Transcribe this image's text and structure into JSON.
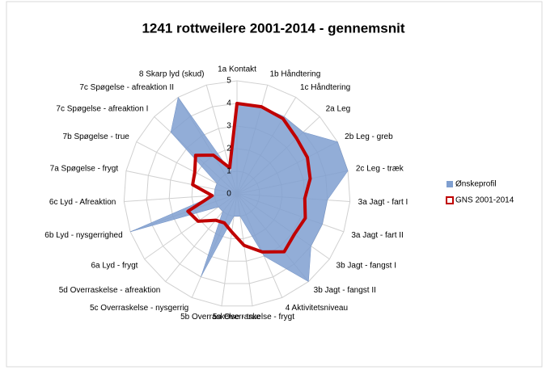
{
  "chart_data": {
    "type": "radar",
    "title": "1241 rottweilere 2001-2014 - gennemsnit",
    "categories": [
      "1a Kontakt",
      "1b Håndtering",
      "1c Håndtering",
      "2a Leg",
      "2b Leg - greb",
      "2c Leg - træk",
      "3a Jagt - fart I",
      "3a Jagt - fart II",
      "3b Jagt - fangst I",
      "3b Jagt - fangst II",
      "4 Aktivitetsniveau",
      "5a Overraskelse - frygt",
      "5b Overraskelse - true",
      "5c Overraskelse - nysgerrig",
      "5d Overraskelse - afreaktion",
      "6a Lyd - frygt",
      "6b Lyd - nysgerrighed",
      "6c Lyd - Afreaktion",
      "7a Spøgelse - frygt",
      "7b Spøgelse - true",
      "7c Spøgelse - afreaktion I",
      "7c Spøgelse - afreaktion II",
      "8 Skarp lyd (skud)"
    ],
    "series": [
      {
        "name": "Ønskeprofil",
        "color": "#7f9fd0",
        "style": "area",
        "values": [
          4,
          4,
          4,
          4,
          5,
          5,
          4,
          4,
          4,
          5,
          3,
          1,
          1,
          4,
          1,
          1,
          5,
          1,
          1,
          1,
          4,
          5,
          1
        ]
      },
      {
        "name": "GNS 2001-2014",
        "color": "#c00000",
        "style": "line",
        "values": [
          4,
          4,
          3.9,
          3.6,
          3.5,
          3.3,
          3,
          3.2,
          3.1,
          3.3,
          2.8,
          2.3,
          1.7,
          1.4,
          1.5,
          2.1,
          2.3,
          1.1,
          2,
          2.1,
          2.5,
          2,
          1.2
        ]
      }
    ],
    "ylim": [
      0,
      5
    ],
    "yticks": [
      0,
      1,
      2,
      3,
      4,
      5
    ],
    "grid": true,
    "legend": "right"
  }
}
